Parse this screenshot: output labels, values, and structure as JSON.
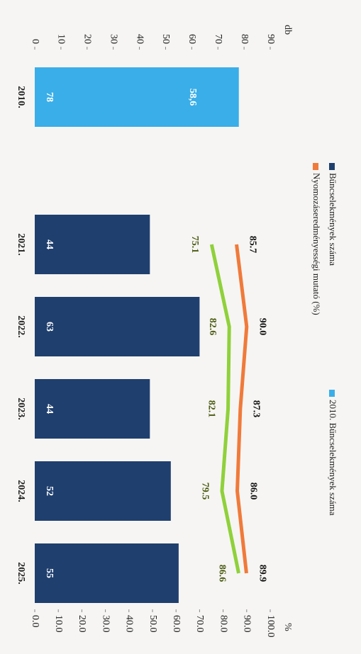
{
  "chart_data": {
    "type": "bar",
    "categories": [
      "2010.",
      "2021.",
      "2022.",
      "2023.",
      "2024.",
      "2025."
    ],
    "ylabel": "db",
    "y2label": "%",
    "ylim": [
      0,
      90
    ],
    "yticks": [
      0,
      10,
      20,
      30,
      40,
      50,
      60,
      70,
      80,
      90
    ],
    "y2lim": [
      0,
      100
    ],
    "y2ticks": [
      {
        "value": 0,
        "label": "0.0"
      },
      {
        "value": 10,
        "label": "10.0"
      },
      {
        "value": 20,
        "label": "20.0"
      },
      {
        "value": 30,
        "label": "30.0"
      },
      {
        "value": 40,
        "label": "40.0"
      },
      {
        "value": 50,
        "label": "50.0"
      },
      {
        "value": 60,
        "label": "60.0"
      },
      {
        "value": 70,
        "label": "70.0"
      },
      {
        "value": 80,
        "label": "80.0"
      },
      {
        "value": 90,
        "label": "90.0"
      },
      {
        "value": 100,
        "label": "100.0"
      }
    ],
    "series": [
      {
        "name": "Bűncselekmények száma",
        "type": "bar",
        "color": "#1f3f6e",
        "values": [
          null,
          44,
          63,
          44,
          52,
          55
        ]
      },
      {
        "name": "2010. Bűncselekmények száma",
        "type": "bar",
        "color": "#3aaee8",
        "values": [
          78,
          null,
          null,
          null,
          null,
          null
        ]
      },
      {
        "name": "Nyomozáseredményességi mutató (%)",
        "type": "line",
        "axis": "y2",
        "color": "#f07a3a",
        "values": [
          null,
          85.7,
          90.0,
          87.3,
          86.0,
          89.9
        ],
        "value_labels": [
          null,
          "85.7",
          "90.0",
          "87.3",
          "86.0",
          "89.9"
        ]
      },
      {
        "type": "line",
        "axis": "y2",
        "color": "#8fd13a",
        "values": [
          null,
          75.1,
          82.6,
          82.1,
          79.5,
          86.6
        ]
      }
    ],
    "annotations": [
      {
        "text": "58,6"
      }
    ]
  }
}
